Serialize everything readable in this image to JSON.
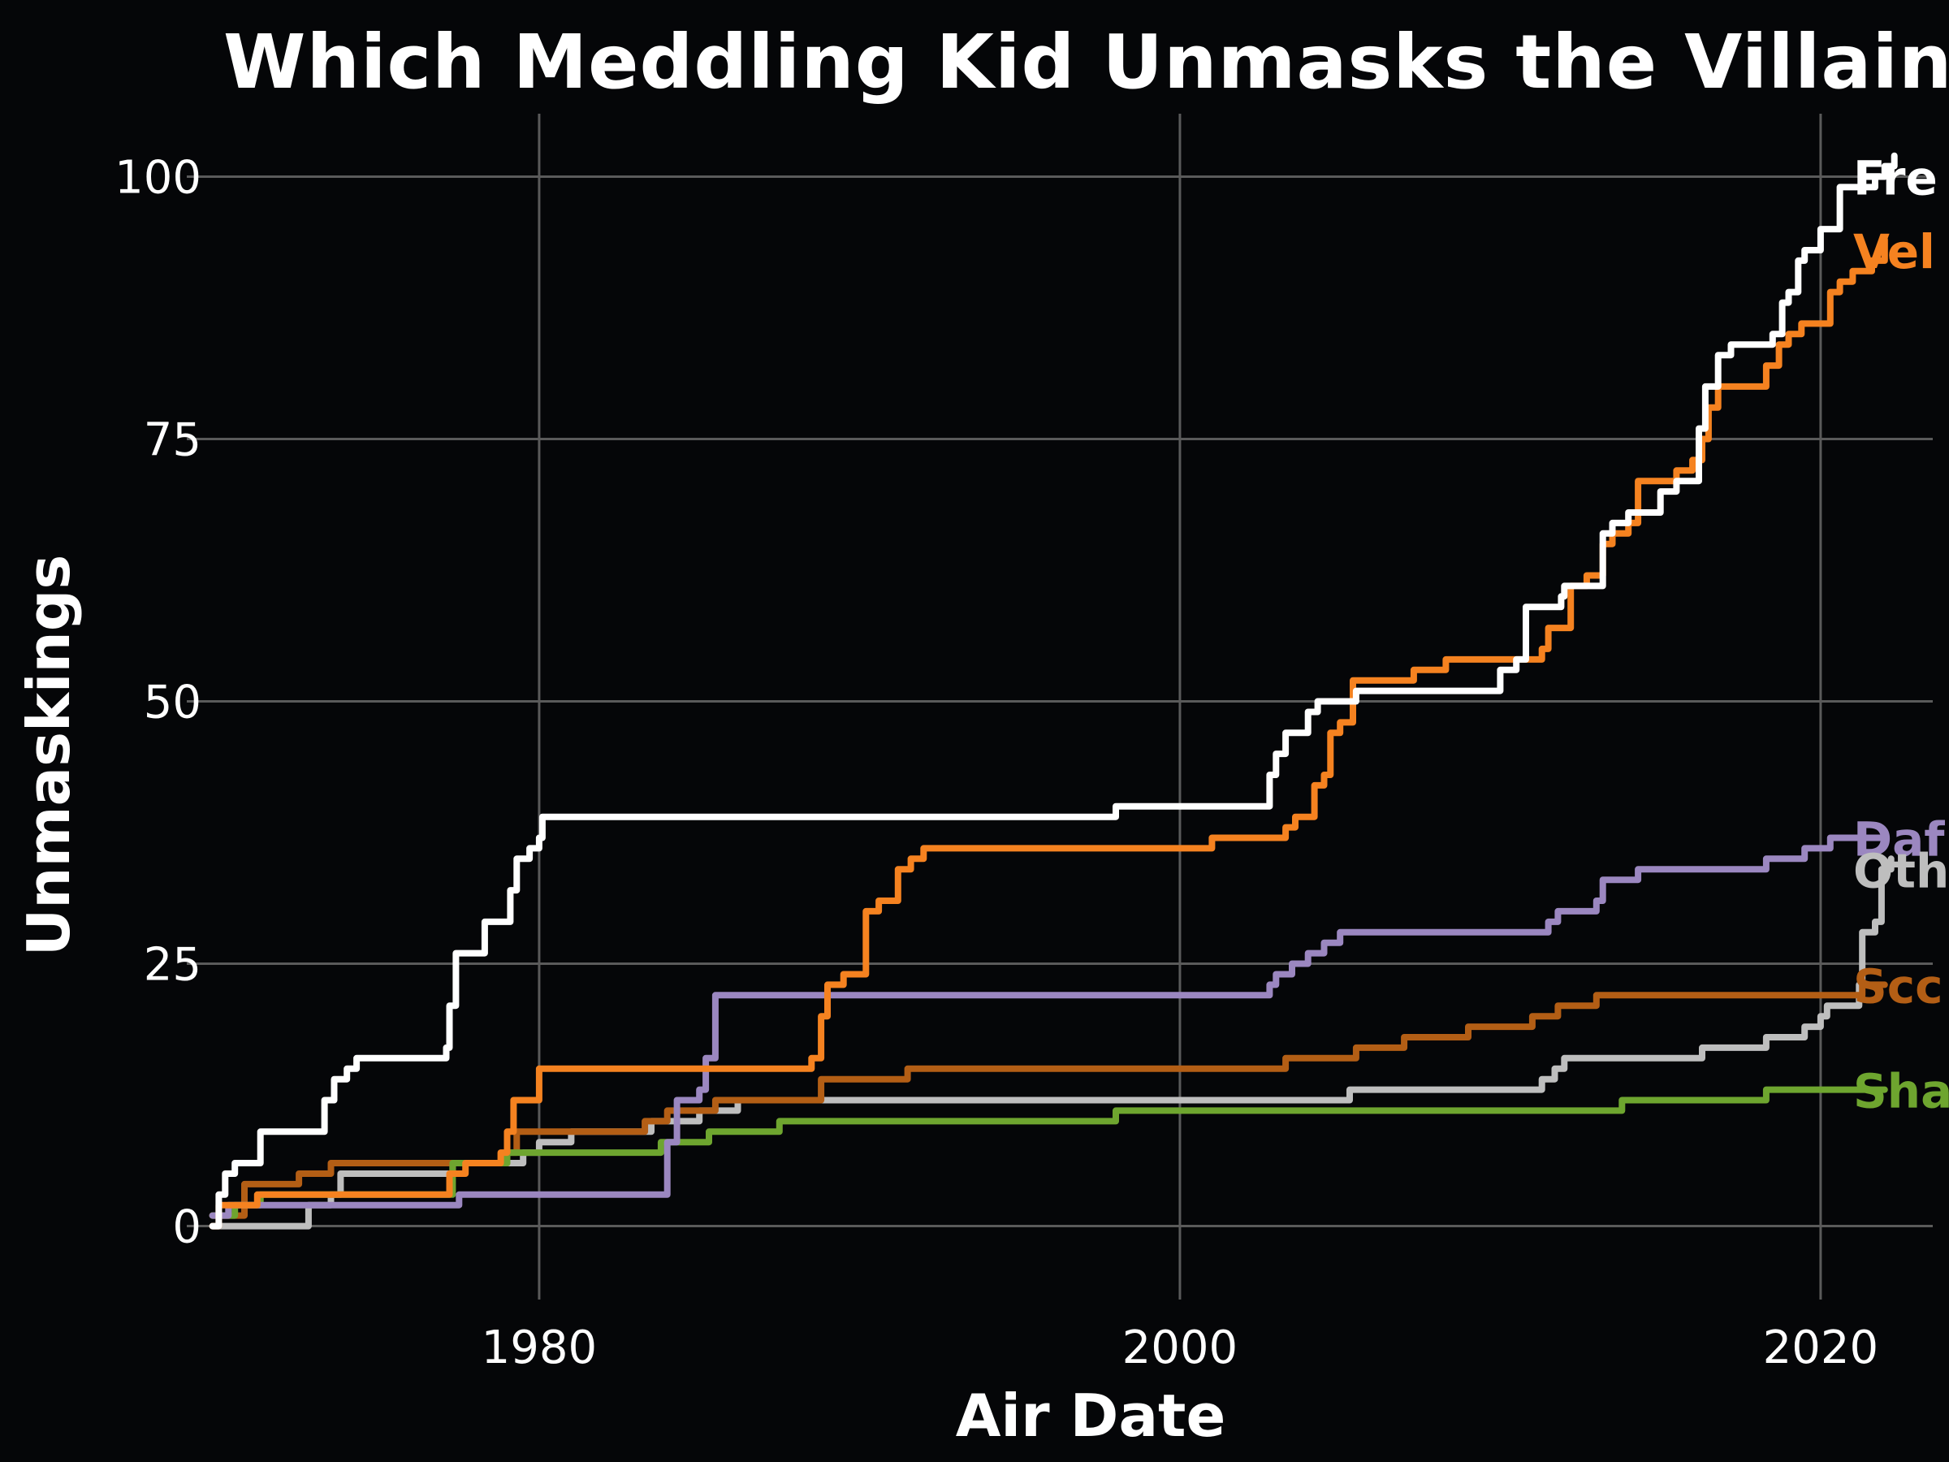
{
  "chart_data": {
    "type": "line",
    "title": "Which Meddling Kid Unmasks the Villain",
    "xlabel": "Air Date",
    "ylabel": "Unmaskings",
    "xlim": [
      1969.0,
      2023.5
    ],
    "ylim": [
      -7,
      106
    ],
    "x_ticks": [
      1980,
      2000,
      2020
    ],
    "x_tick_labels": [
      "1980",
      "2000",
      "2020"
    ],
    "y_ticks": [
      0,
      25,
      50,
      75,
      100
    ],
    "y_tick_labels": [
      "0",
      "25",
      "50",
      "75",
      "100"
    ],
    "grid": true,
    "background": "#050608",
    "grid_color": "#5a5a5a",
    "series": [
      {
        "name": "Fre",
        "color": "#ffffff",
        "points": [
          [
            1969.8,
            0
          ],
          [
            1970.0,
            3
          ],
          [
            1970.2,
            5
          ],
          [
            1970.5,
            6
          ],
          [
            1971.1,
            6
          ],
          [
            1971.3,
            9
          ],
          [
            1973.0,
            9
          ],
          [
            1973.3,
            12
          ],
          [
            1973.6,
            14
          ],
          [
            1974.0,
            15
          ],
          [
            1974.3,
            16
          ],
          [
            1977.1,
            17
          ],
          [
            1977.2,
            21
          ],
          [
            1977.4,
            26
          ],
          [
            1978.0,
            26
          ],
          [
            1978.3,
            29
          ],
          [
            1979.0,
            29
          ],
          [
            1979.1,
            32
          ],
          [
            1979.3,
            35
          ],
          [
            1979.7,
            36
          ],
          [
            1980.0,
            37
          ],
          [
            1980.1,
            39
          ],
          [
            1995.0,
            39
          ],
          [
            1998.0,
            40
          ],
          [
            2002.5,
            40
          ],
          [
            2002.8,
            43
          ],
          [
            2003.0,
            45
          ],
          [
            2003.3,
            47
          ],
          [
            2003.7,
            47
          ],
          [
            2004.0,
            49
          ],
          [
            2004.3,
            50
          ],
          [
            2005.0,
            50
          ],
          [
            2005.5,
            51
          ],
          [
            2009.0,
            51
          ],
          [
            2010.0,
            53
          ],
          [
            2010.5,
            54
          ],
          [
            2010.8,
            59
          ],
          [
            2011.7,
            59
          ],
          [
            2011.9,
            60
          ],
          [
            2012.0,
            61
          ],
          [
            2013.0,
            61
          ],
          [
            2013.2,
            66
          ],
          [
            2013.5,
            67
          ],
          [
            2014.0,
            68
          ],
          [
            2014.5,
            68
          ],
          [
            2015.0,
            70
          ],
          [
            2015.5,
            71
          ],
          [
            2016.0,
            71
          ],
          [
            2016.2,
            76
          ],
          [
            2016.4,
            80
          ],
          [
            2016.8,
            83
          ],
          [
            2017.2,
            84
          ],
          [
            2018.0,
            84
          ],
          [
            2018.5,
            85
          ],
          [
            2018.8,
            88
          ],
          [
            2019.0,
            89
          ],
          [
            2019.3,
            92
          ],
          [
            2019.5,
            93
          ],
          [
            2020.0,
            95
          ],
          [
            2020.4,
            95
          ],
          [
            2020.6,
            99
          ],
          [
            2021.5,
            99
          ],
          [
            2021.7,
            100
          ],
          [
            2022.0,
            101
          ],
          [
            2022.3,
            102
          ]
        ]
      },
      {
        "name": "Vel",
        "color": "#f58220",
        "points": [
          [
            1969.8,
            0
          ],
          [
            1970.0,
            2
          ],
          [
            1971.0,
            2
          ],
          [
            1971.2,
            3
          ],
          [
            1977.0,
            3
          ],
          [
            1977.2,
            5
          ],
          [
            1977.7,
            6
          ],
          [
            1978.5,
            6
          ],
          [
            1978.8,
            7
          ],
          [
            1979.0,
            9
          ],
          [
            1979.2,
            12
          ],
          [
            1979.8,
            12
          ],
          [
            1980.0,
            15
          ],
          [
            1988.0,
            15
          ],
          [
            1988.5,
            16
          ],
          [
            1988.8,
            20
          ],
          [
            1989.0,
            23
          ],
          [
            1989.5,
            24
          ],
          [
            1990.0,
            24
          ],
          [
            1990.2,
            30
          ],
          [
            1990.6,
            31
          ],
          [
            1991.0,
            31
          ],
          [
            1991.2,
            34
          ],
          [
            1991.6,
            35
          ],
          [
            1992.0,
            36
          ],
          [
            2000.0,
            36
          ],
          [
            2001.0,
            37
          ],
          [
            2003.0,
            37
          ],
          [
            2003.3,
            38
          ],
          [
            2003.6,
            39
          ],
          [
            2004.0,
            39
          ],
          [
            2004.2,
            42
          ],
          [
            2004.5,
            43
          ],
          [
            2004.7,
            47
          ],
          [
            2005.0,
            48
          ],
          [
            2005.2,
            48
          ],
          [
            2005.4,
            52
          ],
          [
            2007.0,
            52
          ],
          [
            2007.3,
            53
          ],
          [
            2008.0,
            53
          ],
          [
            2008.3,
            54
          ],
          [
            2011.0,
            54
          ],
          [
            2011.3,
            55
          ],
          [
            2011.5,
            57
          ],
          [
            2012.0,
            57
          ],
          [
            2012.2,
            61
          ],
          [
            2012.5,
            61
          ],
          [
            2012.7,
            62
          ],
          [
            2013.0,
            62
          ],
          [
            2013.2,
            65
          ],
          [
            2013.5,
            66
          ],
          [
            2014.0,
            67
          ],
          [
            2014.3,
            71
          ],
          [
            2015.0,
            71
          ],
          [
            2015.5,
            72
          ],
          [
            2016.0,
            73
          ],
          [
            2016.3,
            75
          ],
          [
            2016.5,
            78
          ],
          [
            2016.8,
            80
          ],
          [
            2018.0,
            80
          ],
          [
            2018.3,
            82
          ],
          [
            2018.7,
            84
          ],
          [
            2019.0,
            85
          ],
          [
            2019.4,
            86
          ],
          [
            2020.0,
            86
          ],
          [
            2020.3,
            89
          ],
          [
            2020.6,
            90
          ],
          [
            2021.0,
            91
          ],
          [
            2021.6,
            92
          ],
          [
            2022.0,
            94
          ]
        ]
      },
      {
        "name": "Daphne",
        "color": "#9b87c0",
        "points": [
          [
            1969.8,
            1
          ],
          [
            1970.3,
            2
          ],
          [
            1977.3,
            2
          ],
          [
            1977.5,
            3
          ],
          [
            1983.8,
            3
          ],
          [
            1984.0,
            8
          ],
          [
            1984.3,
            12
          ],
          [
            1985.0,
            13
          ],
          [
            1985.2,
            16
          ],
          [
            1985.5,
            22
          ],
          [
            2002.5,
            22
          ],
          [
            2002.8,
            23
          ],
          [
            2003.0,
            24
          ],
          [
            2003.5,
            25
          ],
          [
            2004.0,
            26
          ],
          [
            2004.5,
            27
          ],
          [
            2005.0,
            28
          ],
          [
            2011.0,
            28
          ],
          [
            2011.5,
            29
          ],
          [
            2011.8,
            30
          ],
          [
            2012.5,
            30
          ],
          [
            2013.0,
            31
          ],
          [
            2013.2,
            33
          ],
          [
            2014.0,
            33
          ],
          [
            2014.3,
            34
          ],
          [
            2017.0,
            34
          ],
          [
            2018.0,
            34
          ],
          [
            2018.3,
            35
          ],
          [
            2019.0,
            35
          ],
          [
            2019.5,
            36
          ],
          [
            2020.0,
            36
          ],
          [
            2020.3,
            37
          ],
          [
            2022.0,
            37
          ]
        ]
      },
      {
        "name": "Others",
        "color": "#bebebe",
        "points": [
          [
            1969.8,
            0
          ],
          [
            1972.5,
            0
          ],
          [
            1972.8,
            2
          ],
          [
            1973.5,
            3
          ],
          [
            1973.8,
            5
          ],
          [
            1977.0,
            5
          ],
          [
            1977.3,
            6
          ],
          [
            1979.0,
            6
          ],
          [
            1979.5,
            7
          ],
          [
            1980.0,
            8
          ],
          [
            1981.0,
            9
          ],
          [
            1983.0,
            9
          ],
          [
            1983.5,
            10
          ],
          [
            1985.0,
            11
          ],
          [
            1986.0,
            11
          ],
          [
            1986.2,
            12
          ],
          [
            2000.0,
            12
          ],
          [
            2005.0,
            12
          ],
          [
            2005.3,
            13
          ],
          [
            2011.0,
            13
          ],
          [
            2011.3,
            14
          ],
          [
            2011.7,
            15
          ],
          [
            2012.0,
            16
          ],
          [
            2016.0,
            16
          ],
          [
            2016.3,
            17
          ],
          [
            2018.0,
            17
          ],
          [
            2018.3,
            18
          ],
          [
            2019.0,
            18
          ],
          [
            2019.5,
            19
          ],
          [
            2020.0,
            20
          ],
          [
            2020.2,
            21
          ],
          [
            2021.0,
            21
          ],
          [
            2021.2,
            23
          ],
          [
            2021.3,
            28
          ],
          [
            2021.7,
            29
          ],
          [
            2021.9,
            34
          ],
          [
            2022.2,
            35
          ]
        ]
      },
      {
        "name": "Scooby",
        "color": "#b35e15",
        "points": [
          [
            1969.8,
            1
          ],
          [
            1970.5,
            1
          ],
          [
            1970.8,
            4
          ],
          [
            1972.5,
            5
          ],
          [
            1973.0,
            5
          ],
          [
            1973.5,
            6
          ],
          [
            1977.0,
            6
          ],
          [
            1977.2,
            6
          ],
          [
            1978.5,
            6
          ],
          [
            1979.0,
            7
          ],
          [
            1979.3,
            9
          ],
          [
            1983.0,
            9
          ],
          [
            1983.3,
            10
          ],
          [
            1984.0,
            11
          ],
          [
            1985.0,
            11
          ],
          [
            1985.5,
            12
          ],
          [
            1988.5,
            12
          ],
          [
            1988.8,
            14
          ],
          [
            1991.0,
            14
          ],
          [
            1991.5,
            15
          ],
          [
            2003.0,
            15
          ],
          [
            2003.3,
            16
          ],
          [
            2005.0,
            16
          ],
          [
            2005.5,
            17
          ],
          [
            2006.5,
            17
          ],
          [
            2007.0,
            18
          ],
          [
            2008.5,
            18
          ],
          [
            2009.0,
            19
          ],
          [
            2010.5,
            19
          ],
          [
            2011.0,
            20
          ],
          [
            2011.5,
            20
          ],
          [
            2011.8,
            21
          ],
          [
            2012.5,
            21
          ],
          [
            2013.0,
            22
          ],
          [
            2021.0,
            22
          ],
          [
            2021.3,
            23
          ],
          [
            2022.0,
            23
          ]
        ]
      },
      {
        "name": "Shaggy",
        "color": "#6ea52f",
        "points": [
          [
            1969.8,
            1
          ],
          [
            1970.5,
            2
          ],
          [
            1971.0,
            2
          ],
          [
            1971.3,
            3
          ],
          [
            1977.0,
            3
          ],
          [
            1977.3,
            6
          ],
          [
            1978.5,
            6
          ],
          [
            1979.0,
            7
          ],
          [
            1983.5,
            7
          ],
          [
            1983.8,
            8
          ],
          [
            1985.0,
            8
          ],
          [
            1985.3,
            9
          ],
          [
            1986.0,
            9
          ],
          [
            1987.5,
            10
          ],
          [
            1995.0,
            10
          ],
          [
            1998.0,
            11
          ],
          [
            2013.5,
            11
          ],
          [
            2013.8,
            12
          ],
          [
            2018.0,
            12
          ],
          [
            2018.3,
            13
          ],
          [
            2022.0,
            13
          ]
        ]
      }
    ],
    "series_labels": [
      "Fre",
      "Vel",
      "Daf",
      "Oth",
      "Scc",
      "Sha"
    ]
  }
}
